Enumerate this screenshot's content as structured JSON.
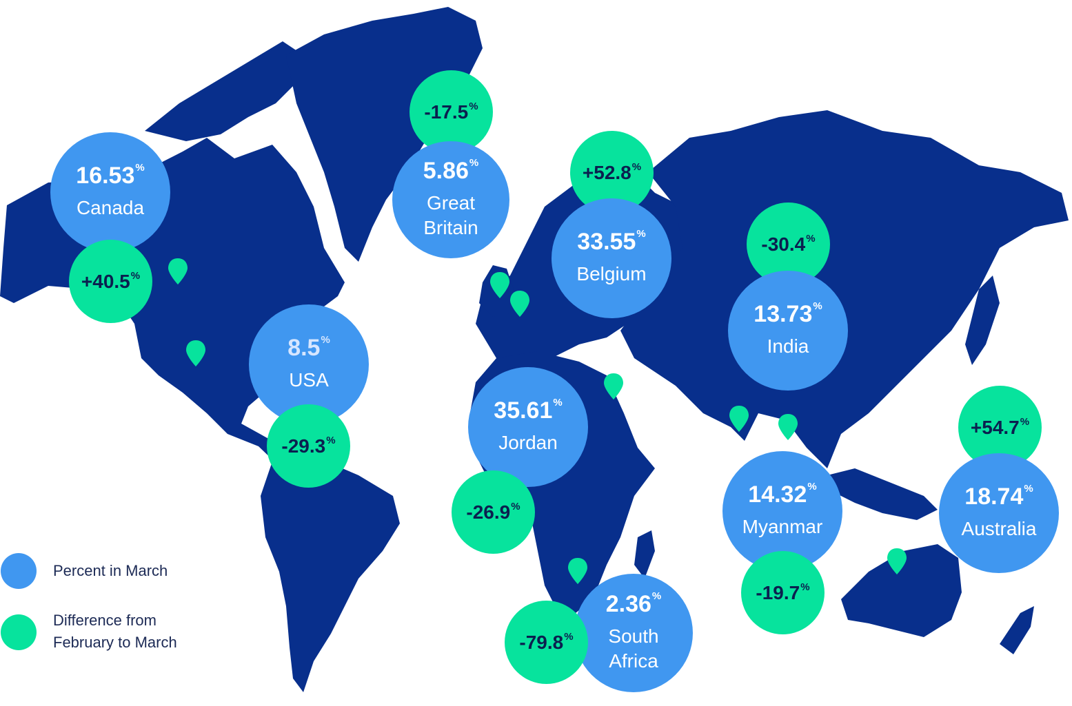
{
  "colors": {
    "land": "#082f8c",
    "percent_bubble": "#4097f0",
    "difference_bubble": "#07e39d",
    "text_dark": "#0b1f4f"
  },
  "percent_unit": "%",
  "countries": {
    "canada": {
      "name": "Canada",
      "percent": "16.53",
      "difference": "+40.5"
    },
    "great_britain": {
      "name": "Great Britain",
      "percent": "5.86",
      "difference": "-17.5"
    },
    "belgium": {
      "name": "Belgium",
      "percent": "33.55",
      "difference": "+52.8"
    },
    "india": {
      "name": "India",
      "percent": "13.73",
      "difference": "-30.4"
    },
    "usa": {
      "name": "USA",
      "percent": "8.5",
      "difference": "-29.3"
    },
    "jordan": {
      "name": "Jordan",
      "percent": "35.61",
      "difference": "-26.9"
    },
    "myanmar": {
      "name": "Myanmar",
      "percent": "14.32",
      "difference": "-19.7"
    },
    "australia": {
      "name": "Australia",
      "percent": "18.74",
      "difference": "+54.7"
    },
    "south_africa": {
      "name": "South Africa",
      "percent": "2.36",
      "difference": "-79.8"
    }
  },
  "legend": {
    "percent_label": "Percent in March",
    "difference_label": "Difference from February to March"
  },
  "pin_icon": "map-pin-icon"
}
